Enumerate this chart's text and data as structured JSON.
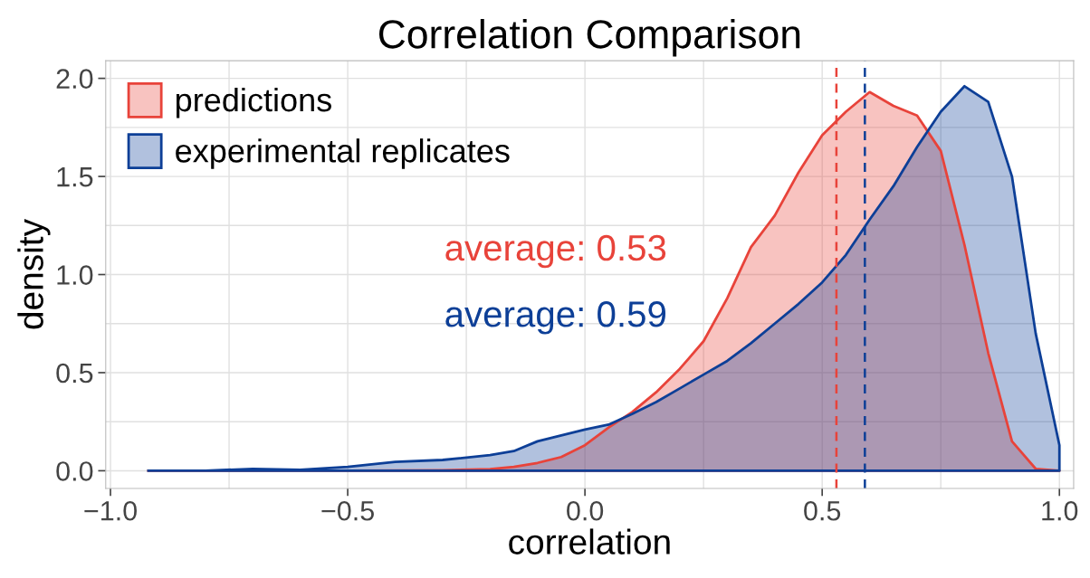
{
  "chart_data": {
    "type": "area",
    "title": "Correlation Comparison",
    "xlabel": "correlation",
    "ylabel": "density",
    "series": [
      {
        "name": "predictions",
        "color": "#e8433a",
        "x": [
          -0.92,
          -0.5,
          -0.3,
          -0.2,
          -0.15,
          -0.1,
          -0.05,
          0,
          0.05,
          0.1,
          0.15,
          0.2,
          0.25,
          0.3,
          0.35,
          0.4,
          0.45,
          0.5,
          0.55,
          0.6,
          0.65,
          0.7,
          0.75,
          0.8,
          0.85,
          0.9,
          0.95,
          1.0
        ],
        "values": [
          0,
          0,
          0.003,
          0.008,
          0.02,
          0.04,
          0.07,
          0.13,
          0.22,
          0.3,
          0.4,
          0.52,
          0.66,
          0.88,
          1.14,
          1.3,
          1.52,
          1.71,
          1.83,
          1.93,
          1.86,
          1.81,
          1.63,
          1.15,
          0.6,
          0.15,
          0.01,
          0
        ]
      },
      {
        "name": "experimental replicates",
        "color": "#0d3f97",
        "x": [
          -0.92,
          -0.8,
          -0.7,
          -0.6,
          -0.5,
          -0.4,
          -0.3,
          -0.2,
          -0.15,
          -0.1,
          -0.05,
          0,
          0.05,
          0.1,
          0.15,
          0.2,
          0.25,
          0.3,
          0.35,
          0.4,
          0.45,
          0.5,
          0.55,
          0.6,
          0.65,
          0.7,
          0.75,
          0.8,
          0.85,
          0.9,
          0.95,
          1.0
        ],
        "values": [
          0,
          0,
          0.01,
          0.005,
          0.02,
          0.045,
          0.055,
          0.08,
          0.1,
          0.15,
          0.18,
          0.21,
          0.235,
          0.29,
          0.35,
          0.42,
          0.49,
          0.56,
          0.65,
          0.75,
          0.85,
          0.96,
          1.1,
          1.28,
          1.45,
          1.65,
          1.83,
          1.96,
          1.88,
          1.5,
          0.7,
          0.13
        ]
      }
    ],
    "ref_lines": [
      {
        "axis": "x",
        "value": 0.53,
        "color": "#e8433a",
        "line_style": "dashed"
      },
      {
        "axis": "x",
        "value": 0.59,
        "color": "#0d3f97",
        "line_style": "dashed"
      }
    ],
    "annotations": [
      "average: 0.53",
      "average: 0.59"
    ],
    "xlim": [
      -1.01,
      1.03
    ],
    "ylim": [
      -0.09,
      2.09
    ],
    "xticks": [
      {
        "value": -1.0,
        "label": "−1.0"
      },
      {
        "value": -0.75,
        "label": null
      },
      {
        "value": -0.5,
        "label": "−0.5"
      },
      {
        "value": -0.25,
        "label": null
      },
      {
        "value": 0,
        "label": "0.0"
      },
      {
        "value": 0.25,
        "label": null
      },
      {
        "value": 0.5,
        "label": "0.5"
      },
      {
        "value": 0.75,
        "label": null
      },
      {
        "value": 1.0,
        "label": "1.0"
      }
    ],
    "yticks": [
      {
        "value": 0,
        "label": "0.0"
      },
      {
        "value": 0.25,
        "label": null
      },
      {
        "value": 0.5,
        "label": "0.5"
      },
      {
        "value": 0.75,
        "label": null
      },
      {
        "value": 1.0,
        "label": "1.0"
      },
      {
        "value": 1.25,
        "label": null
      },
      {
        "value": 1.5,
        "label": "1.5"
      },
      {
        "value": 1.75,
        "label": null
      },
      {
        "value": 2.0,
        "label": "2.0"
      }
    ],
    "grid": true,
    "legend": "top left"
  }
}
